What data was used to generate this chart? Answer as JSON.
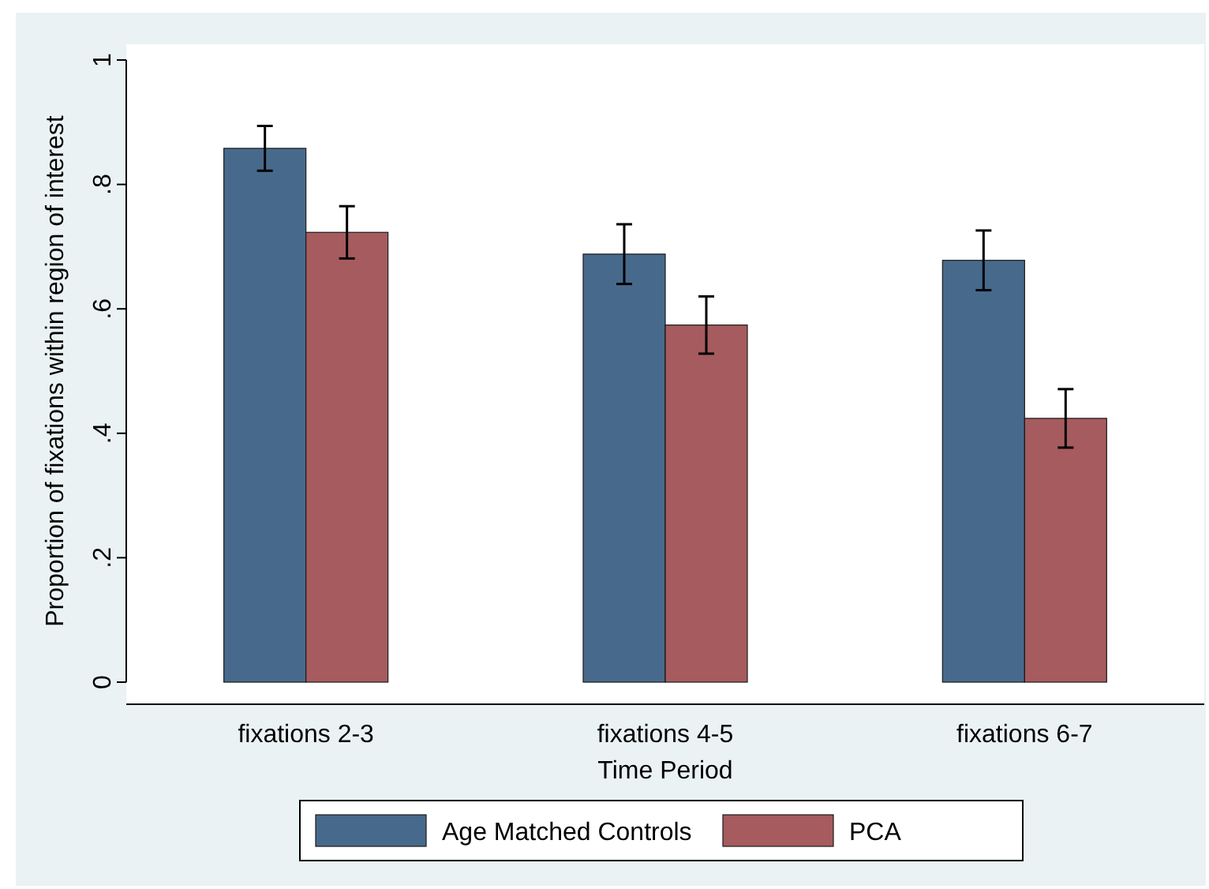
{
  "chart_data": {
    "type": "bar",
    "xlabel": "Time Period",
    "ylabel": "Proportion of fixations within region of interest",
    "categories": [
      "fixations 2-3",
      "fixations 4-5",
      "fixations 6-7"
    ],
    "series": [
      {
        "name": "Age Matched Controls",
        "color": "#476a8c",
        "values": [
          0.858,
          0.688,
          0.678
        ],
        "errors": [
          0.036,
          0.048,
          0.048
        ]
      },
      {
        "name": "PCA",
        "color": "#a65b5e",
        "values": [
          0.723,
          0.574,
          0.424
        ],
        "errors": [
          0.042,
          0.046,
          0.047
        ]
      }
    ],
    "ylim": [
      0,
      1
    ],
    "yticks": [
      0,
      {
        "value": 0.2,
        "label": ".2"
      },
      {
        "value": 0.4,
        "label": ".4"
      },
      {
        "value": 0.6,
        "label": ".6"
      },
      {
        "value": 0.8,
        "label": ".8"
      },
      1
    ],
    "grid": false,
    "legend": "bottom"
  }
}
